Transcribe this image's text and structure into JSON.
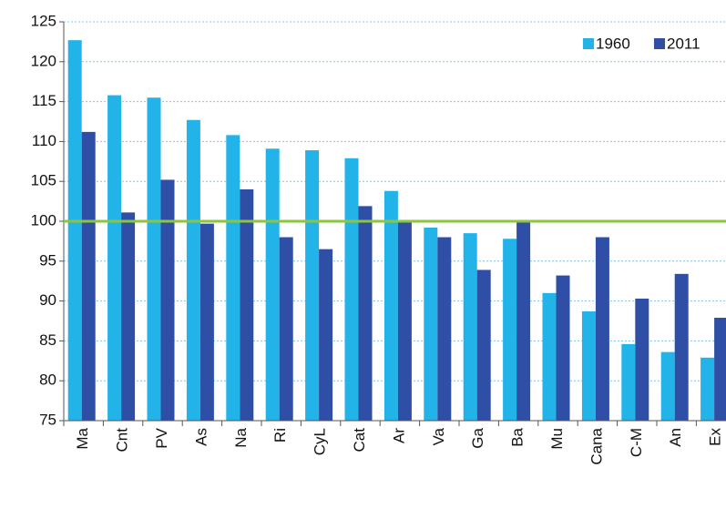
{
  "chart_data": {
    "type": "bar",
    "categories": [
      "Ma",
      "Cnt",
      "PV",
      "As",
      "Na",
      "Ri",
      "CyL",
      "Cat",
      "Ar",
      "Va",
      "Ga",
      "Ba",
      "Mu",
      "Cana",
      "C-M",
      "An",
      "Ex"
    ],
    "series": [
      {
        "name": "1960",
        "color": "#22b3e8",
        "values": [
          122.7,
          115.8,
          115.5,
          112.7,
          110.8,
          109.1,
          108.9,
          107.9,
          103.8,
          99.2,
          98.5,
          97.8,
          91.0,
          88.7,
          84.6,
          83.6,
          82.9
        ]
      },
      {
        "name": "2011",
        "color": "#2f4fa6",
        "values": [
          111.2,
          101.1,
          105.2,
          99.7,
          104.0,
          98.0,
          96.5,
          101.9,
          99.9,
          98.0,
          93.9,
          99.9,
          93.2,
          98.0,
          90.3,
          93.4,
          87.9
        ]
      }
    ],
    "ylim": [
      75,
      125
    ],
    "yticks": [
      75,
      80,
      85,
      90,
      95,
      100,
      105,
      110,
      115,
      120,
      125
    ],
    "grid": true,
    "legend": "top-right",
    "reference_line": 100,
    "reference_color": "#8cc63f"
  }
}
